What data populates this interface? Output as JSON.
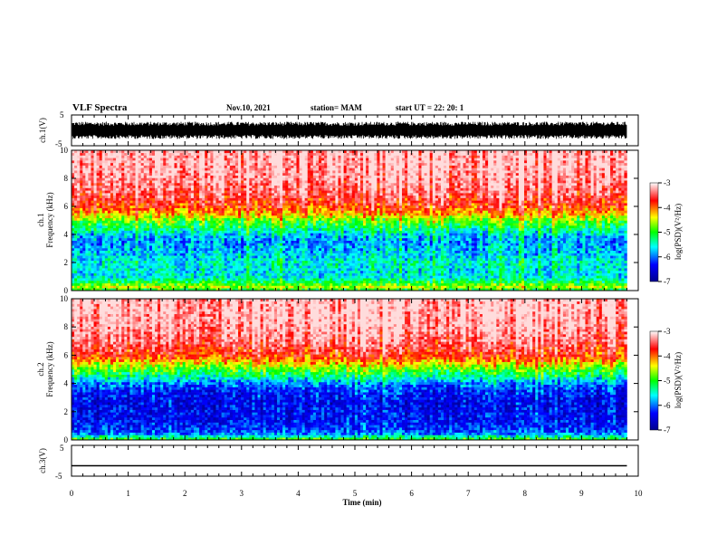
{
  "header": {
    "title": "VLF Spectra",
    "date": "Nov.10, 2021",
    "station": "station= MAM",
    "start": "start  UT =   22: 20: 1"
  },
  "chart_data": [
    {
      "type": "line",
      "panel": "ch1-waveform",
      "ylabel": "ch.1(V)",
      "ylim": [
        -5,
        5
      ],
      "yticks": [
        "5",
        "-5"
      ],
      "xlim": [
        0,
        10
      ],
      "description_values": {
        "typical_amplitude_range": [
          -2.8,
          2.8
        ],
        "data_end_min": 9.8
      },
      "color": "#000000"
    },
    {
      "type": "heatmap",
      "panel": "ch1-spectrogram",
      "ylabel_line1": "ch.1",
      "ylabel_line2": "Frequency (kHz)",
      "ylim": [
        0,
        10
      ],
      "yticks": [
        "0",
        "2",
        "4",
        "6",
        "8",
        "10"
      ],
      "xlim": [
        0,
        10
      ],
      "data_end_min": 9.8,
      "colorbar": {
        "label": "log(PSD)(V²/Hz)",
        "range": [
          -7,
          -3
        ],
        "ticks": [
          "-3",
          "-4",
          "-5",
          "-6",
          "-7"
        ]
      },
      "profile_freq_khz": [
        0,
        0.3,
        0.5,
        1,
        1.5,
        2,
        2.5,
        3,
        3.5,
        4,
        4.5,
        5,
        5.5,
        6,
        7,
        8,
        9,
        10
      ],
      "profile_log_psd": [
        -5.2,
        -4.5,
        -5.0,
        -5.6,
        -5.6,
        -5.5,
        -5.7,
        -5.8,
        -5.9,
        -5.7,
        -5.2,
        -4.8,
        -4.2,
        -3.8,
        -3.4,
        -3.2,
        -3.1,
        -3.1
      ]
    },
    {
      "type": "heatmap",
      "panel": "ch2-spectrogram",
      "ylabel_line1": "ch.2",
      "ylabel_line2": "Frequency (kHz)",
      "ylim": [
        0,
        10
      ],
      "yticks": [
        "0",
        "2",
        "4",
        "6",
        "8",
        "10"
      ],
      "xlim": [
        0,
        10
      ],
      "data_end_min": 9.8,
      "colorbar": {
        "label": "log(PSD)(V²/Hz)",
        "range": [
          -7,
          -3
        ],
        "ticks": [
          "-3",
          "-4",
          "-5",
          "-6",
          "-7"
        ]
      },
      "profile_freq_khz": [
        0,
        0.3,
        0.5,
        1,
        1.5,
        2,
        2.5,
        3,
        3.5,
        4,
        4.5,
        5,
        5.5,
        6,
        7,
        8,
        9,
        10
      ],
      "profile_log_psd": [
        -4.8,
        -5.6,
        -6.1,
        -6.3,
        -6.4,
        -6.4,
        -6.5,
        -6.4,
        -6.3,
        -6.0,
        -5.4,
        -4.9,
        -4.3,
        -3.8,
        -3.4,
        -3.2,
        -3.1,
        -3.1
      ]
    },
    {
      "type": "line",
      "panel": "ch3-waveform",
      "ylabel": "ch.3(V)",
      "ylim": [
        -5,
        5
      ],
      "yticks": [
        "5",
        "-5"
      ],
      "xlim": [
        0,
        10
      ],
      "x": [
        0,
        9.8
      ],
      "y": [
        -1.6,
        -1.6
      ],
      "color": "#000000"
    }
  ],
  "xaxis": {
    "label": "Time (min)",
    "ticks": [
      "0",
      "1",
      "2",
      "3",
      "4",
      "5",
      "6",
      "7",
      "8",
      "9",
      "10"
    ]
  }
}
